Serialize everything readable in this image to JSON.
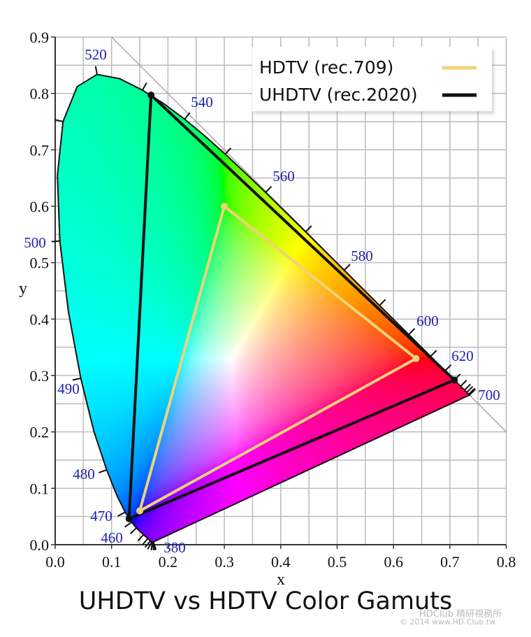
{
  "chart_data": {
    "type": "scatter",
    "title": "UHDTV vs HDTV Color Gamuts",
    "xlabel": "x",
    "ylabel": "y",
    "xlim": [
      0.0,
      0.8
    ],
    "ylim": [
      0.0,
      0.9
    ],
    "x_ticks": [
      "0.0",
      "0.1",
      "0.2",
      "0.3",
      "0.4",
      "0.5",
      "0.6",
      "0.7",
      "0.8"
    ],
    "y_ticks": [
      "0.0",
      "0.1",
      "0.2",
      "0.3",
      "0.4",
      "0.5",
      "0.6",
      "0.7",
      "0.8",
      "0.9"
    ],
    "grid": true,
    "grid_step": 0.05,
    "legend_position": "top-right",
    "series": [
      {
        "name": "HDTV (rec.709)",
        "color": "#f0d27a",
        "points": [
          [
            0.64,
            0.33
          ],
          [
            0.3,
            0.6
          ],
          [
            0.15,
            0.06
          ]
        ]
      },
      {
        "name": "UHDTV (rec.2020)",
        "color": "#111111",
        "points": [
          [
            0.708,
            0.292
          ],
          [
            0.17,
            0.797
          ],
          [
            0.131,
            0.046
          ]
        ]
      }
    ],
    "wavelength_labels": [
      "380",
      "460",
      "470",
      "480",
      "490",
      "500",
      "520",
      "540",
      "560",
      "580",
      "600",
      "620",
      "700"
    ],
    "wavelength_label_color": "#2020b0",
    "spectral_locus": [
      [
        380,
        0.1741,
        0.005
      ],
      [
        390,
        0.1738,
        0.0049
      ],
      [
        400,
        0.1733,
        0.0048
      ],
      [
        410,
        0.1726,
        0.0048
      ],
      [
        420,
        0.1714,
        0.0051
      ],
      [
        430,
        0.1689,
        0.0069
      ],
      [
        440,
        0.1644,
        0.0109
      ],
      [
        450,
        0.1566,
        0.0177
      ],
      [
        460,
        0.144,
        0.0297
      ],
      [
        465,
        0.1355,
        0.0399
      ],
      [
        470,
        0.1241,
        0.0578
      ],
      [
        475,
        0.1096,
        0.0868
      ],
      [
        480,
        0.0913,
        0.1327
      ],
      [
        485,
        0.0687,
        0.2007
      ],
      [
        490,
        0.0454,
        0.295
      ],
      [
        495,
        0.0235,
        0.4127
      ],
      [
        500,
        0.0082,
        0.5384
      ],
      [
        505,
        0.0039,
        0.6548
      ],
      [
        510,
        0.0139,
        0.7502
      ],
      [
        515,
        0.0389,
        0.812
      ],
      [
        520,
        0.0743,
        0.8338
      ],
      [
        525,
        0.1142,
        0.8262
      ],
      [
        530,
        0.1547,
        0.8059
      ],
      [
        535,
        0.1929,
        0.7816
      ],
      [
        540,
        0.2296,
        0.7543
      ],
      [
        545,
        0.2658,
        0.7243
      ],
      [
        550,
        0.3016,
        0.6923
      ],
      [
        555,
        0.3373,
        0.6589
      ],
      [
        560,
        0.3731,
        0.6245
      ],
      [
        565,
        0.4087,
        0.5896
      ],
      [
        570,
        0.4441,
        0.5547
      ],
      [
        575,
        0.4788,
        0.5202
      ],
      [
        580,
        0.5125,
        0.4866
      ],
      [
        585,
        0.5448,
        0.4544
      ],
      [
        590,
        0.5752,
        0.4242
      ],
      [
        595,
        0.6029,
        0.3965
      ],
      [
        600,
        0.627,
        0.3725
      ],
      [
        605,
        0.6482,
        0.3514
      ],
      [
        610,
        0.6658,
        0.334
      ],
      [
        620,
        0.6915,
        0.3083
      ],
      [
        630,
        0.7079,
        0.292
      ],
      [
        640,
        0.719,
        0.2809
      ],
      [
        650,
        0.726,
        0.274
      ],
      [
        660,
        0.73,
        0.27
      ],
      [
        680,
        0.7334,
        0.2666
      ],
      [
        700,
        0.7347,
        0.2653
      ]
    ]
  },
  "watermark": {
    "line1": "HDClub 精研視務所",
    "line2": "© 2014 www.HD.Club.tw"
  }
}
